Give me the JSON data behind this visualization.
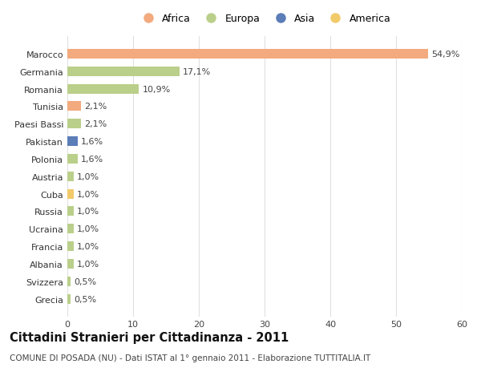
{
  "countries": [
    "Marocco",
    "Germania",
    "Romania",
    "Tunisia",
    "Paesi Bassi",
    "Pakistan",
    "Polonia",
    "Austria",
    "Cuba",
    "Russia",
    "Ucraina",
    "Francia",
    "Albania",
    "Svizzera",
    "Grecia"
  ],
  "values": [
    54.9,
    17.1,
    10.9,
    2.1,
    2.1,
    1.6,
    1.6,
    1.0,
    1.0,
    1.0,
    1.0,
    1.0,
    1.0,
    0.5,
    0.5
  ],
  "labels": [
    "54,9%",
    "17,1%",
    "10,9%",
    "2,1%",
    "2,1%",
    "1,6%",
    "1,6%",
    "1,0%",
    "1,0%",
    "1,0%",
    "1,0%",
    "1,0%",
    "1,0%",
    "0,5%",
    "0,5%"
  ],
  "continents": [
    "Africa",
    "Europa",
    "Europa",
    "Africa",
    "Europa",
    "Asia",
    "Europa",
    "Europa",
    "America",
    "Europa",
    "Europa",
    "Europa",
    "Europa",
    "Europa",
    "Europa"
  ],
  "colors": {
    "Africa": "#F2AA7E",
    "Europa": "#BACF8A",
    "Asia": "#5B7DB8",
    "America": "#F2CA6A"
  },
  "legend_order": [
    "Africa",
    "Europa",
    "Asia",
    "America"
  ],
  "xlim": [
    0,
    60
  ],
  "xticks": [
    0,
    10,
    20,
    30,
    40,
    50,
    60
  ],
  "title": "Cittadini Stranieri per Cittadinanza - 2011",
  "subtitle": "COMUNE DI POSADA (NU) - Dati ISTAT al 1° gennaio 2011 - Elaborazione TUTTITALIA.IT",
  "background_color": "#ffffff",
  "bar_height": 0.55,
  "grid_color": "#e0e0e0",
  "label_fontsize": 8,
  "tick_fontsize": 8,
  "title_fontsize": 10.5,
  "subtitle_fontsize": 7.5
}
